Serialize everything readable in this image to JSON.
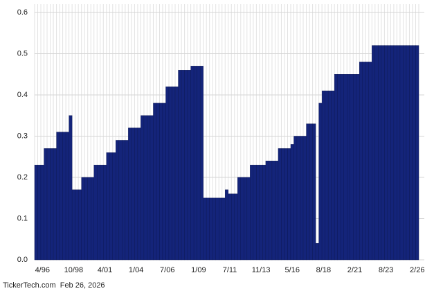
{
  "chart_data": {
    "type": "bar",
    "categories": [
      null,
      null,
      "4/96",
      null,
      null,
      null,
      null,
      null,
      null,
      null,
      null,
      null,
      "10/98",
      null,
      null,
      null,
      null,
      null,
      null,
      null,
      null,
      null,
      "4/01",
      null,
      null,
      null,
      null,
      null,
      null,
      null,
      null,
      null,
      "1/04",
      null,
      null,
      null,
      null,
      null,
      null,
      null,
      null,
      null,
      "7/06",
      null,
      null,
      null,
      null,
      null,
      null,
      null,
      null,
      null,
      "1/09",
      null,
      null,
      null,
      null,
      null,
      null,
      null,
      null,
      null,
      "7/11",
      null,
      null,
      null,
      null,
      null,
      null,
      null,
      null,
      null,
      "11/13",
      null,
      null,
      null,
      null,
      null,
      null,
      null,
      null,
      null,
      "5/16",
      null,
      null,
      null,
      null,
      null,
      null,
      null,
      null,
      null,
      "8/18",
      null,
      null,
      null,
      null,
      null,
      null,
      null,
      null,
      null,
      "2/21",
      null,
      null,
      null,
      null,
      null,
      null,
      null,
      null,
      null,
      "8/23",
      null,
      null,
      null,
      null,
      null,
      null,
      null,
      null,
      null,
      "2/26"
    ],
    "values": [
      0.23,
      0.23,
      0.23,
      0.27,
      0.27,
      0.27,
      0.27,
      0.31,
      0.31,
      0.31,
      0.31,
      0.35,
      0.17,
      0.17,
      0.17,
      0.2,
      0.2,
      0.2,
      0.2,
      0.23,
      0.23,
      0.23,
      0.23,
      0.26,
      0.26,
      0.26,
      0.29,
      0.29,
      0.29,
      0.29,
      0.32,
      0.32,
      0.32,
      0.32,
      0.35,
      0.35,
      0.35,
      0.35,
      0.38,
      0.38,
      0.38,
      0.38,
      0.42,
      0.42,
      0.42,
      0.42,
      0.46,
      0.46,
      0.46,
      0.46,
      0.47,
      0.47,
      0.47,
      0.47,
      0.15,
      0.15,
      0.15,
      0.15,
      0.15,
      0.15,
      0.15,
      0.17,
      0.16,
      0.16,
      0.16,
      0.2,
      0.2,
      0.2,
      0.2,
      0.23,
      0.23,
      0.23,
      0.23,
      0.23,
      0.24,
      0.24,
      0.24,
      0.24,
      0.27,
      0.27,
      0.27,
      0.27,
      0.28,
      0.3,
      0.3,
      0.3,
      0.3,
      0.33,
      0.33,
      0.33,
      0.04,
      0.38,
      0.41,
      0.41,
      0.41,
      0.41,
      0.45,
      0.45,
      0.45,
      0.45,
      0.45,
      0.45,
      0.45,
      0.45,
      0.48,
      0.48,
      0.48,
      0.48,
      0.52,
      0.52,
      0.52,
      0.52,
      0.52,
      0.52,
      0.52,
      0.52,
      0.52,
      0.52,
      0.52,
      0.52,
      0.52,
      0.52,
      0.52
    ],
    "color": "#14247a",
    "ylim": [
      0,
      0.6
    ],
    "yticks": [
      {
        "value": 0,
        "label": "0.0"
      },
      0.1,
      0.2,
      0.3,
      0.4,
      0.5,
      0.6
    ],
    "grid": true,
    "footer": "TickerTech.com  Feb 26, 2026"
  }
}
